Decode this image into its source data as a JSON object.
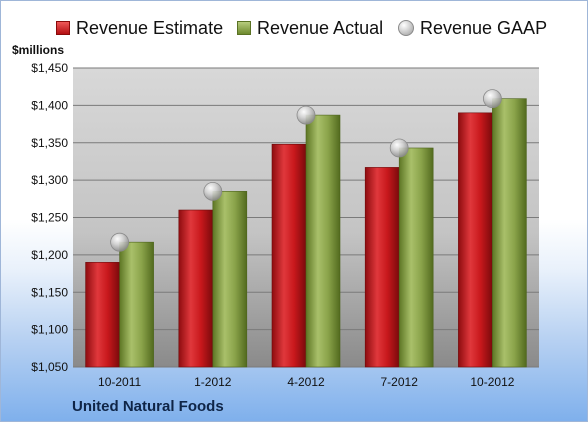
{
  "legend": {
    "estimate": "Revenue Estimate",
    "actual": "Revenue Actual",
    "gaap": "Revenue GAAP"
  },
  "units_label": "$millions",
  "company": "United Natural Foods",
  "colors": {
    "estimate": "#c0161b",
    "actual": "#8aa34a",
    "gaap": "#b8b8b8"
  },
  "chart_data": {
    "type": "bar",
    "title": "",
    "xlabel": "",
    "ylabel": "$millions",
    "categories": [
      "10-2011",
      "1-2012",
      "4-2012",
      "7-2012",
      "10-2012"
    ],
    "series": [
      {
        "name": "Revenue Estimate",
        "values": [
          1190,
          1260,
          1348,
          1317,
          1390
        ]
      },
      {
        "name": "Revenue Actual",
        "values": [
          1217,
          1285,
          1387,
          1343,
          1409
        ]
      },
      {
        "name": "Revenue GAAP",
        "values": [
          1217,
          1285,
          1387,
          1343,
          1409
        ],
        "marker": "sphere"
      }
    ],
    "ylim": [
      1050,
      1450
    ],
    "yticks": [
      1050,
      1100,
      1150,
      1200,
      1250,
      1300,
      1350,
      1400,
      1450
    ],
    "ytick_labels": [
      "$1,050",
      "$1,100",
      "$1,150",
      "$1,200",
      "$1,250",
      "$1,300",
      "$1,350",
      "$1,400",
      "$1,450"
    ],
    "grid": true,
    "legend_position": "top"
  }
}
